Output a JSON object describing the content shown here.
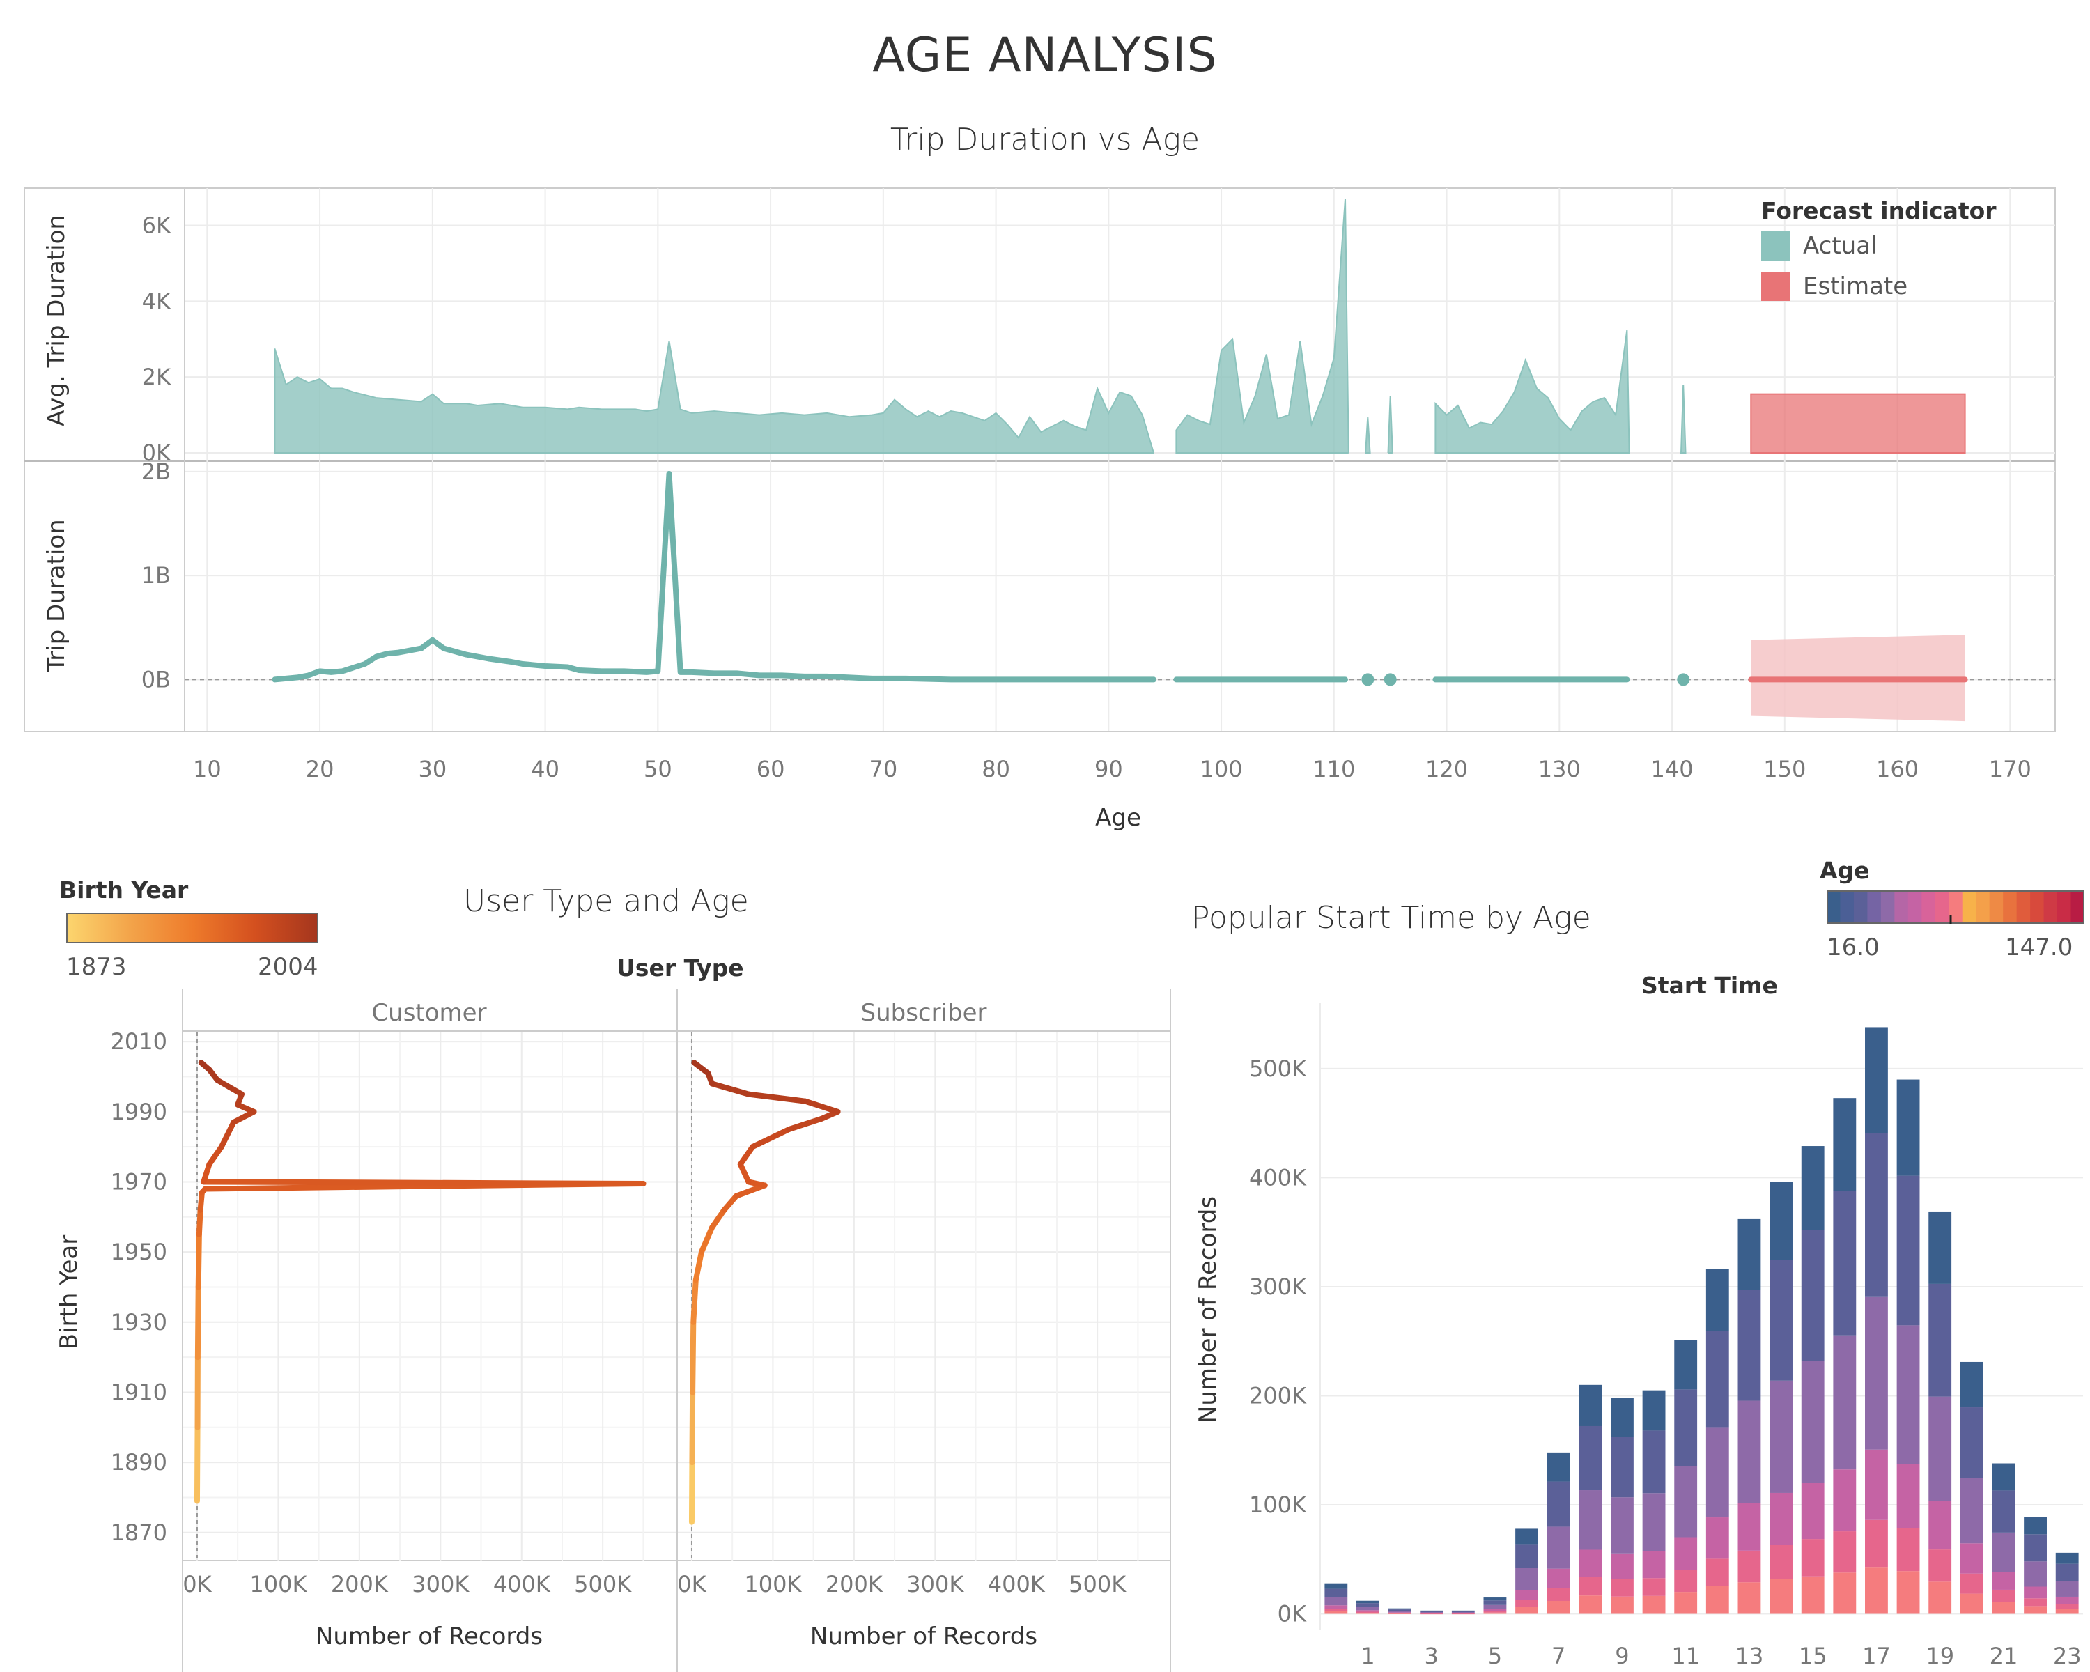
{
  "page": {
    "title": "AGE ANALYSIS"
  },
  "colors": {
    "actual": "#8cc3bd",
    "actual_line": "#6fb3ab",
    "estimate": "#e87476",
    "estimate_band": "#f4c4c6",
    "axis": "#cccccc",
    "grid": "#ececec"
  },
  "chart_data": [
    {
      "id": "trip-duration-vs-age",
      "type": "area",
      "title": "Trip Duration vs Age",
      "xlabel": "Age",
      "xlim": [
        8,
        174
      ],
      "xticks": [
        "10",
        "20",
        "30",
        "40",
        "50",
        "60",
        "70",
        "80",
        "90",
        "100",
        "110",
        "120",
        "130",
        "140",
        "150",
        "160",
        "170"
      ],
      "legend": {
        "title": "Forecast indicator",
        "items": [
          "Actual",
          "Estimate"
        ],
        "position": "top-right"
      },
      "top": {
        "ylabel": "Avg. Trip Duration",
        "ylim": [
          0,
          6800
        ],
        "yticks": [
          "0K",
          "2K",
          "4K",
          "6K"
        ],
        "actual_segments": [
          [
            [
              16,
              2750
            ],
            [
              17,
              1800
            ],
            [
              18,
              2000
            ],
            [
              19,
              1850
            ],
            [
              20,
              1950
            ],
            [
              21,
              1700
            ],
            [
              22,
              1700
            ],
            [
              23,
              1600
            ],
            [
              25,
              1450
            ],
            [
              27,
              1400
            ],
            [
              29,
              1350
            ],
            [
              30,
              1550
            ],
            [
              31,
              1300
            ],
            [
              33,
              1300
            ],
            [
              34,
              1250
            ],
            [
              36,
              1300
            ],
            [
              38,
              1200
            ],
            [
              40,
              1200
            ],
            [
              42,
              1150
            ],
            [
              43,
              1200
            ],
            [
              45,
              1150
            ],
            [
              48,
              1150
            ],
            [
              49,
              1100
            ],
            [
              50,
              1150
            ],
            [
              51,
              2950
            ],
            [
              52,
              1150
            ],
            [
              53,
              1050
            ],
            [
              55,
              1100
            ],
            [
              57,
              1050
            ],
            [
              59,
              1000
            ],
            [
              61,
              1050
            ],
            [
              63,
              1000
            ],
            [
              65,
              1050
            ],
            [
              67,
              950
            ],
            [
              69,
              1000
            ],
            [
              70,
              1050
            ],
            [
              71,
              1400
            ],
            [
              72,
              1150
            ],
            [
              73,
              950
            ],
            [
              74,
              1100
            ],
            [
              75,
              950
            ],
            [
              76,
              1100
            ],
            [
              77,
              1050
            ],
            [
              78,
              950
            ],
            [
              79,
              850
            ],
            [
              80,
              1050
            ],
            [
              81,
              750
            ],
            [
              82,
              400
            ],
            [
              83,
              950
            ],
            [
              84,
              550
            ],
            [
              85,
              700
            ],
            [
              86,
              850
            ],
            [
              87,
              700
            ],
            [
              88,
              600
            ],
            [
              89,
              1700
            ],
            [
              90,
              1050
            ],
            [
              91,
              1600
            ],
            [
              92,
              1500
            ],
            [
              93,
              1000
            ],
            [
              94,
              0
            ]
          ],
          [
            [
              96,
              600
            ],
            [
              97,
              1000
            ],
            [
              98,
              850
            ],
            [
              99,
              750
            ],
            [
              100,
              2700
            ],
            [
              101,
              3000
            ],
            [
              102,
              800
            ],
            [
              103,
              1500
            ],
            [
              104,
              2600
            ],
            [
              105,
              900
            ],
            [
              106,
              1000
            ],
            [
              107,
              2950
            ],
            [
              108,
              750
            ],
            [
              109,
              1500
            ],
            [
              110,
              2500
            ],
            [
              111,
              6700
            ],
            [
              111.3,
              0
            ]
          ],
          [
            [
              112.8,
              0
            ],
            [
              113,
              950
            ],
            [
              113.2,
              0
            ]
          ],
          [
            [
              114.8,
              0
            ],
            [
              115,
              1500
            ],
            [
              115.2,
              0
            ]
          ],
          [
            [
              119,
              1300
            ],
            [
              120,
              1000
            ],
            [
              121,
              1250
            ],
            [
              122,
              650
            ],
            [
              123,
              800
            ],
            [
              124,
              750
            ],
            [
              125,
              1100
            ],
            [
              126,
              1600
            ],
            [
              127,
              2450
            ],
            [
              128,
              1700
            ],
            [
              129,
              1450
            ],
            [
              130,
              900
            ],
            [
              131,
              600
            ],
            [
              132,
              1100
            ],
            [
              133,
              1350
            ],
            [
              134,
              1450
            ],
            [
              135,
              1000
            ],
            [
              136,
              3250
            ],
            [
              136.2,
              0
            ]
          ],
          [
            [
              140.8,
              0
            ],
            [
              141,
              1800
            ],
            [
              141.2,
              0
            ]
          ]
        ],
        "estimate": {
          "x_start": 147,
          "x_end": 166,
          "value": 1550
        }
      },
      "bottom": {
        "ylabel": "Trip Duration",
        "ylim": [
          -0.5,
          2.1
        ],
        "yticks": [
          "0B",
          "1B",
          "2B"
        ],
        "actual_segments": [
          [
            [
              16,
              0.0
            ],
            [
              18,
              0.02
            ],
            [
              19,
              0.04
            ],
            [
              20,
              0.08
            ],
            [
              21,
              0.07
            ],
            [
              22,
              0.08
            ],
            [
              24,
              0.15
            ],
            [
              25,
              0.22
            ],
            [
              26,
              0.25
            ],
            [
              27,
              0.26
            ],
            [
              28,
              0.28
            ],
            [
              29,
              0.3
            ],
            [
              30,
              0.38
            ],
            [
              31,
              0.3
            ],
            [
              32,
              0.27
            ],
            [
              33,
              0.24
            ],
            [
              35,
              0.2
            ],
            [
              37,
              0.17
            ],
            [
              38,
              0.15
            ],
            [
              40,
              0.13
            ],
            [
              42,
              0.12
            ],
            [
              43,
              0.09
            ],
            [
              45,
              0.08
            ],
            [
              47,
              0.08
            ],
            [
              49,
              0.07
            ],
            [
              50,
              0.08
            ],
            [
              51,
              1.98
            ],
            [
              52,
              0.07
            ],
            [
              53,
              0.07
            ],
            [
              55,
              0.06
            ],
            [
              57,
              0.06
            ],
            [
              59,
              0.04
            ],
            [
              61,
              0.04
            ],
            [
              63,
              0.03
            ],
            [
              65,
              0.03
            ],
            [
              67,
              0.02
            ],
            [
              69,
              0.01
            ],
            [
              72,
              0.01
            ],
            [
              76,
              0.0
            ],
            [
              94,
              0.0
            ]
          ],
          [
            [
              96,
              0.0
            ],
            [
              111,
              0.0
            ]
          ],
          [
            [
              119,
              0.0
            ],
            [
              136,
              0.0
            ]
          ]
        ],
        "actual_points": [
          [
            113,
            0.0
          ],
          [
            115,
            0.0
          ],
          [
            141,
            0.0
          ]
        ],
        "estimate": {
          "x_start": 147,
          "x_end": 166,
          "value": 0.0,
          "band_start": [
            -0.35,
            0.38
          ],
          "band_end": [
            -0.4,
            0.43
          ]
        }
      }
    },
    {
      "id": "user-type-and-age",
      "type": "line",
      "title": "User Type and Age",
      "facet_header": "User Type",
      "color_legend": {
        "title": "Birth Year",
        "min": "1873",
        "max": "2004"
      },
      "ylabel": "Birth Year",
      "ylim": [
        1864,
        2013
      ],
      "yticks": [
        "1870",
        "1890",
        "1910",
        "1930",
        "1950",
        "1970",
        "1990",
        "2010"
      ],
      "xlim": [
        -18000,
        590000
      ],
      "xticks": [
        "0K",
        "100K",
        "200K",
        "300K",
        "400K",
        "500K"
      ],
      "xlabel": "Number of Records",
      "panels": [
        {
          "name": "Customer",
          "points": [
            [
              0,
              1879
            ],
            [
              500,
              1900
            ],
            [
              800,
              1920
            ],
            [
              1500,
              1940
            ],
            [
              2500,
              1955
            ],
            [
              4000,
              1962
            ],
            [
              6000,
              1967
            ],
            [
              10000,
              1968
            ],
            [
              550000,
              1969.5
            ],
            [
              8000,
              1970
            ],
            [
              15000,
              1975
            ],
            [
              30000,
              1980
            ],
            [
              45000,
              1987
            ],
            [
              70000,
              1990
            ],
            [
              50000,
              1992
            ],
            [
              55000,
              1995
            ],
            [
              40000,
              1997
            ],
            [
              25000,
              1999
            ],
            [
              15000,
              2002
            ],
            [
              5000,
              2004
            ]
          ]
        },
        {
          "name": "Subscriber",
          "points": [
            [
              0,
              1873
            ],
            [
              400,
              1890
            ],
            [
              1000,
              1910
            ],
            [
              2000,
              1930
            ],
            [
              5000,
              1942
            ],
            [
              12000,
              1950
            ],
            [
              25000,
              1957
            ],
            [
              40000,
              1962
            ],
            [
              55000,
              1966
            ],
            [
              90000,
              1969
            ],
            [
              70000,
              1970
            ],
            [
              60000,
              1975
            ],
            [
              75000,
              1980
            ],
            [
              120000,
              1985
            ],
            [
              160000,
              1988
            ],
            [
              180000,
              1990
            ],
            [
              140000,
              1993
            ],
            [
              70000,
              1995
            ],
            [
              25000,
              1998
            ],
            [
              20000,
              2001
            ],
            [
              3000,
              2004
            ]
          ]
        }
      ]
    },
    {
      "id": "popular-start-time-by-age",
      "type": "bar",
      "title": "Popular Start Time by Age",
      "subtitle": "Start Time",
      "color_legend": {
        "title": "Age",
        "min": "16.0",
        "max": "147.0"
      },
      "ylabel": "Number of Records",
      "ylim": [
        -15000,
        560000
      ],
      "yticks": [
        "0K",
        "100K",
        "200K",
        "300K",
        "400K",
        "500K"
      ],
      "xtick_labels": [
        "1",
        "3",
        "5",
        "7",
        "9",
        "11",
        "13",
        "15",
        "17",
        "19",
        "21",
        "23"
      ],
      "categories": [
        "0",
        "1",
        "2",
        "3",
        "4",
        "5",
        "6",
        "7",
        "8",
        "9",
        "10",
        "11",
        "12",
        "13",
        "14",
        "15",
        "16",
        "17",
        "18",
        "19",
        "20",
        "21",
        "22",
        "23"
      ],
      "totals": [
        28000,
        12000,
        5000,
        3000,
        3000,
        15000,
        78000,
        148000,
        210000,
        198000,
        205000,
        251000,
        316000,
        362000,
        396000,
        429000,
        473000,
        538000,
        490000,
        369000,
        231000,
        138000,
        89000,
        56000
      ],
      "stack_fractions": [
        0.08,
        0.08,
        0.12,
        0.26,
        0.28,
        0.18
      ],
      "stack_colors": [
        "#f57c7e",
        "#e6668c",
        "#c563a4",
        "#8e6aa8",
        "#5b6098",
        "#3a5f8c"
      ]
    }
  ]
}
